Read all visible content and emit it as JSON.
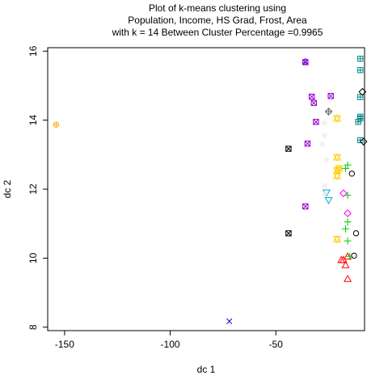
{
  "chart_data": {
    "type": "scatter",
    "title_lines": [
      "Plot of k-means clustering using",
      "Population, Income, HS Grad, Frost, Area",
      "with  k = 14 Between Cluster Percentage =0.9965"
    ],
    "xlabel": "dc 1",
    "ylabel": "dc 2",
    "xlim": [
      -158,
      -8
    ],
    "ylim": [
      7.9,
      16.1
    ],
    "xticks": [
      -150,
      -100,
      -50
    ],
    "yticks": [
      8,
      10,
      12,
      14,
      16
    ],
    "grid": false,
    "series": [
      {
        "color": "#000000",
        "symbol": "circle",
        "points": [
          [
            -14,
            12.45
          ],
          [
            -12,
            10.72
          ],
          [
            -13,
            10.07
          ]
        ]
      },
      {
        "color": "#ff0000",
        "symbol": "triangle",
        "points": [
          [
            -16,
            10.05
          ],
          [
            -18,
            9.95
          ],
          [
            -17,
            9.8
          ],
          [
            -19,
            9.95
          ],
          [
            -16,
            9.4
          ]
        ]
      },
      {
        "color": "#00cc00",
        "symbol": "plus",
        "points": [
          [
            -16,
            12.7
          ],
          [
            -17,
            12.6
          ],
          [
            -16,
            11.82
          ],
          [
            -16,
            11.05
          ],
          [
            -17,
            10.85
          ],
          [
            -16,
            10.5
          ],
          [
            -15,
            10.05
          ]
        ]
      },
      {
        "color": "#0000cc",
        "symbol": "cross",
        "points": [
          [
            -72,
            8.17
          ]
        ]
      },
      {
        "color": "#00aacc",
        "symbol": "triangle-down",
        "points": [
          [
            -26,
            11.9
          ],
          [
            -25,
            11.68
          ]
        ]
      },
      {
        "color": "#ff00ff",
        "symbol": "diamond",
        "points": [
          [
            -18,
            11.88
          ],
          [
            -16,
            11.3
          ]
        ]
      },
      {
        "color": "#eeeeee",
        "symbol": "asterisk",
        "points": [
          [
            -27,
            13.92
          ],
          [
            -27,
            13.55
          ],
          [
            -28,
            13.3
          ],
          [
            -26,
            12.85
          ],
          [
            -27,
            12.1
          ],
          [
            -27,
            11.85
          ]
        ]
      },
      {
        "color": "#666666",
        "symbol": "diamond-plus",
        "points": [
          [
            -25,
            14.25
          ]
        ]
      },
      {
        "color": "#ffcc00",
        "symbol": "star-of-david",
        "points": [
          [
            -21,
            14.05
          ],
          [
            -21,
            12.92
          ],
          [
            -20,
            12.6
          ],
          [
            -21,
            12.55
          ],
          [
            -21,
            12.38
          ],
          [
            -21,
            10.55
          ]
        ]
      },
      {
        "color": "#ffaa00",
        "symbol": "circle-plus",
        "points": [
          [
            -154,
            13.87
          ]
        ]
      },
      {
        "color": "#000000",
        "symbol": "square-cross",
        "points": [
          [
            -44,
            13.17
          ],
          [
            -44,
            10.72
          ]
        ]
      },
      {
        "color": "#3333ff",
        "symbol": "circle-cross",
        "points": [
          [
            -36,
            15.7
          ]
        ]
      },
      {
        "color": "#008888",
        "symbol": "square-plus",
        "points": [
          [
            -10,
            15.78
          ],
          [
            -10,
            15.45
          ],
          [
            -10,
            14.1
          ],
          [
            -10,
            14.05
          ],
          [
            -11,
            13.95
          ],
          [
            -10,
            13.42
          ],
          [
            -10,
            14.67
          ]
        ]
      },
      {
        "color": "#000000",
        "symbol": "diamond",
        "points": [
          [
            -9,
            14.82
          ],
          [
            -8.5,
            13.38
          ]
        ]
      },
      {
        "color": "#9900cc",
        "symbol": "square-cross",
        "points": [
          [
            -36,
            15.68
          ],
          [
            -33,
            14.68
          ],
          [
            -32,
            14.5
          ],
          [
            -24,
            14.7
          ],
          [
            -31,
            13.95
          ],
          [
            -35,
            13.32
          ],
          [
            -36,
            11.5
          ]
        ]
      }
    ]
  }
}
